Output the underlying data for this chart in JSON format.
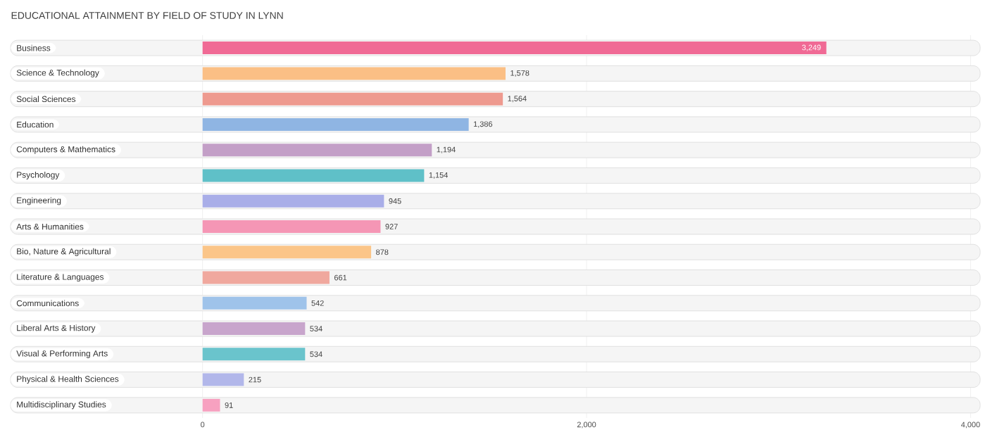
{
  "chart_data": {
    "type": "bar",
    "orientation": "horizontal",
    "title": "EDUCATIONAL ATTAINMENT BY FIELD OF STUDY IN LYNN",
    "categories": [
      "Business",
      "Science & Technology",
      "Social Sciences",
      "Education",
      "Computers & Mathematics",
      "Psychology",
      "Engineering",
      "Arts & Humanities",
      "Bio, Nature & Agricultural",
      "Literature & Languages",
      "Communications",
      "Liberal Arts & History",
      "Visual & Performing Arts",
      "Physical & Health Sciences",
      "Multidisciplinary Studies"
    ],
    "values": [
      3249,
      1578,
      1564,
      1386,
      1194,
      1154,
      945,
      927,
      878,
      661,
      542,
      534,
      534,
      215,
      91
    ],
    "value_labels": [
      "3,249",
      "1,578",
      "1,564",
      "1,386",
      "1,194",
      "1,154",
      "945",
      "927",
      "878",
      "661",
      "542",
      "534",
      "534",
      "215",
      "91"
    ],
    "colors": [
      "#f06a95",
      "#fbbf85",
      "#ee9a8f",
      "#8fb5e3",
      "#c39fc7",
      "#5fc0c8",
      "#a9aee8",
      "#f596b5",
      "#fbc588",
      "#f0a89e",
      "#9fc3ea",
      "#c8a5cc",
      "#6ac4cc",
      "#b2b7ea",
      "#f7a1c0"
    ],
    "xlim": [
      -1000,
      4050
    ],
    "xticks": [
      0,
      {
        "value": 2000,
        "label": "2,000"
      },
      {
        "value": 4000,
        "label": "4,000"
      }
    ],
    "grid": "x"
  }
}
